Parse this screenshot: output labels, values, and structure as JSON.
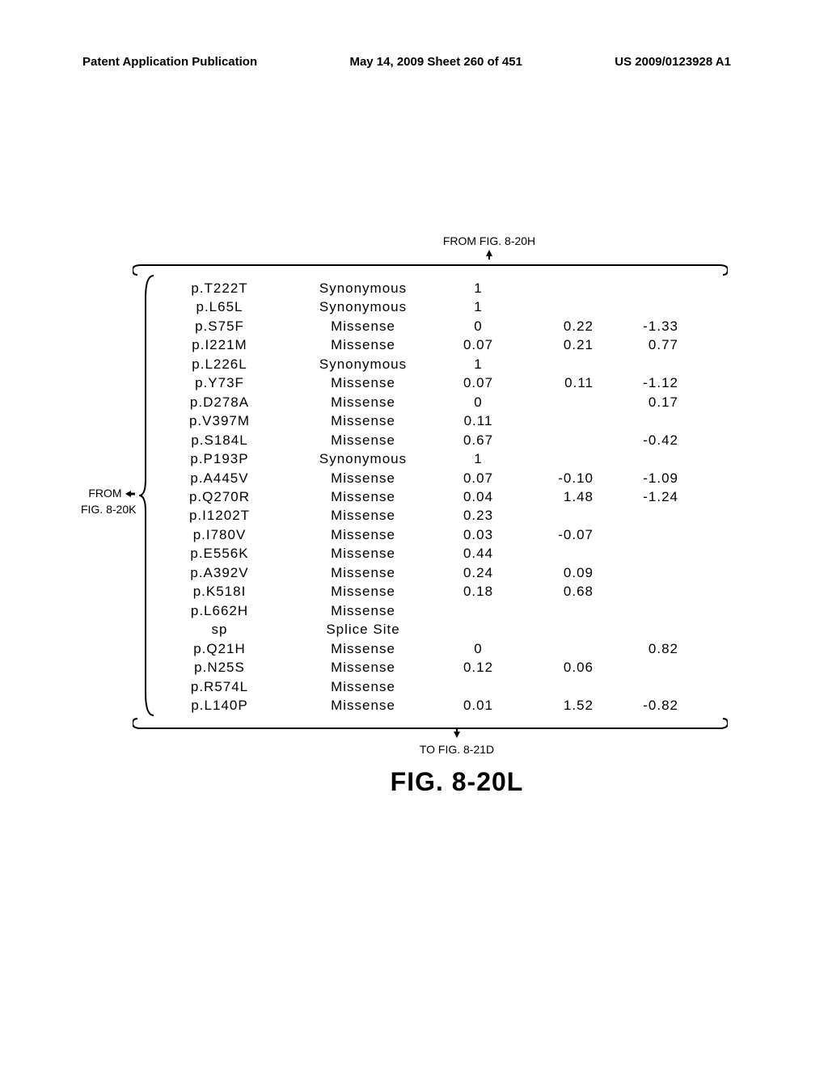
{
  "header": {
    "left": "Patent Application Publication",
    "center": "May 14, 2009  Sheet 260 of 451",
    "right": "US 2009/0123928 A1"
  },
  "fromTop": "FROM FIG. 8-20H",
  "fromLeft": {
    "line1": "FROM",
    "line2": "FIG. 8-20K"
  },
  "toBottom": "TO FIG. 8-21D",
  "figureLabel": "FIG. 8-20L",
  "rows": [
    {
      "mutation": "p.T222T",
      "type": "Synonymous",
      "v1": "1",
      "v2": "",
      "v3": ""
    },
    {
      "mutation": "p.L65L",
      "type": "Synonymous",
      "v1": "1",
      "v2": "",
      "v3": ""
    },
    {
      "mutation": "p.S75F",
      "type": "Missense",
      "v1": "0",
      "v2": "0.22",
      "v3": "-1.33"
    },
    {
      "mutation": "p.I221M",
      "type": "Missense",
      "v1": "0.07",
      "v2": "0.21",
      "v3": "0.77"
    },
    {
      "mutation": "p.L226L",
      "type": "Synonymous",
      "v1": "1",
      "v2": "",
      "v3": ""
    },
    {
      "mutation": "p.Y73F",
      "type": "Missense",
      "v1": "0.07",
      "v2": "0.11",
      "v3": "-1.12"
    },
    {
      "mutation": "p.D278A",
      "type": "Missense",
      "v1": "0",
      "v2": "",
      "v3": "0.17"
    },
    {
      "mutation": "p.V397M",
      "type": "Missense",
      "v1": "0.11",
      "v2": "",
      "v3": ""
    },
    {
      "mutation": "p.S184L",
      "type": "Missense",
      "v1": "0.67",
      "v2": "",
      "v3": "-0.42"
    },
    {
      "mutation": "p.P193P",
      "type": "Synonymous",
      "v1": "1",
      "v2": "",
      "v3": ""
    },
    {
      "mutation": "p.A445V",
      "type": "Missense",
      "v1": "0.07",
      "v2": "-0.10",
      "v3": "-1.09"
    },
    {
      "mutation": "p.Q270R",
      "type": "Missense",
      "v1": "0.04",
      "v2": "1.48",
      "v3": "-1.24"
    },
    {
      "mutation": "p.I1202T",
      "type": "Missense",
      "v1": "0.23",
      "v2": "",
      "v3": ""
    },
    {
      "mutation": "p.I780V",
      "type": "Missense",
      "v1": "0.03",
      "v2": "-0.07",
      "v3": ""
    },
    {
      "mutation": "p.E556K",
      "type": "Missense",
      "v1": "0.44",
      "v2": "",
      "v3": ""
    },
    {
      "mutation": "p.A392V",
      "type": "Missense",
      "v1": "0.24",
      "v2": "0.09",
      "v3": ""
    },
    {
      "mutation": "p.K518I",
      "type": "Missense",
      "v1": "0.18",
      "v2": "0.68",
      "v3": ""
    },
    {
      "mutation": "p.L662H",
      "type": "Missense",
      "v1": "",
      "v2": "",
      "v3": ""
    },
    {
      "mutation": "sp",
      "type": "Splice Site",
      "v1": "",
      "v2": "",
      "v3": ""
    },
    {
      "mutation": "p.Q21H",
      "type": "Missense",
      "v1": "0",
      "v2": "",
      "v3": "0.82"
    },
    {
      "mutation": "p.N25S",
      "type": "Missense",
      "v1": "0.12",
      "v2": "0.06",
      "v3": ""
    },
    {
      "mutation": "p.R574L",
      "type": "Missense",
      "v1": "",
      "v2": "",
      "v3": ""
    },
    {
      "mutation": "p.L140P",
      "type": "Missense",
      "v1": "0.01",
      "v2": "1.52",
      "v3": "-0.82"
    }
  ],
  "style": {
    "background": "#ffffff",
    "text_color": "#000000",
    "font_family": "Arial",
    "header_fontsize": 15,
    "body_fontsize": 17,
    "label_fontsize": 14,
    "figure_fontsize": 32,
    "stroke_width": 2
  }
}
